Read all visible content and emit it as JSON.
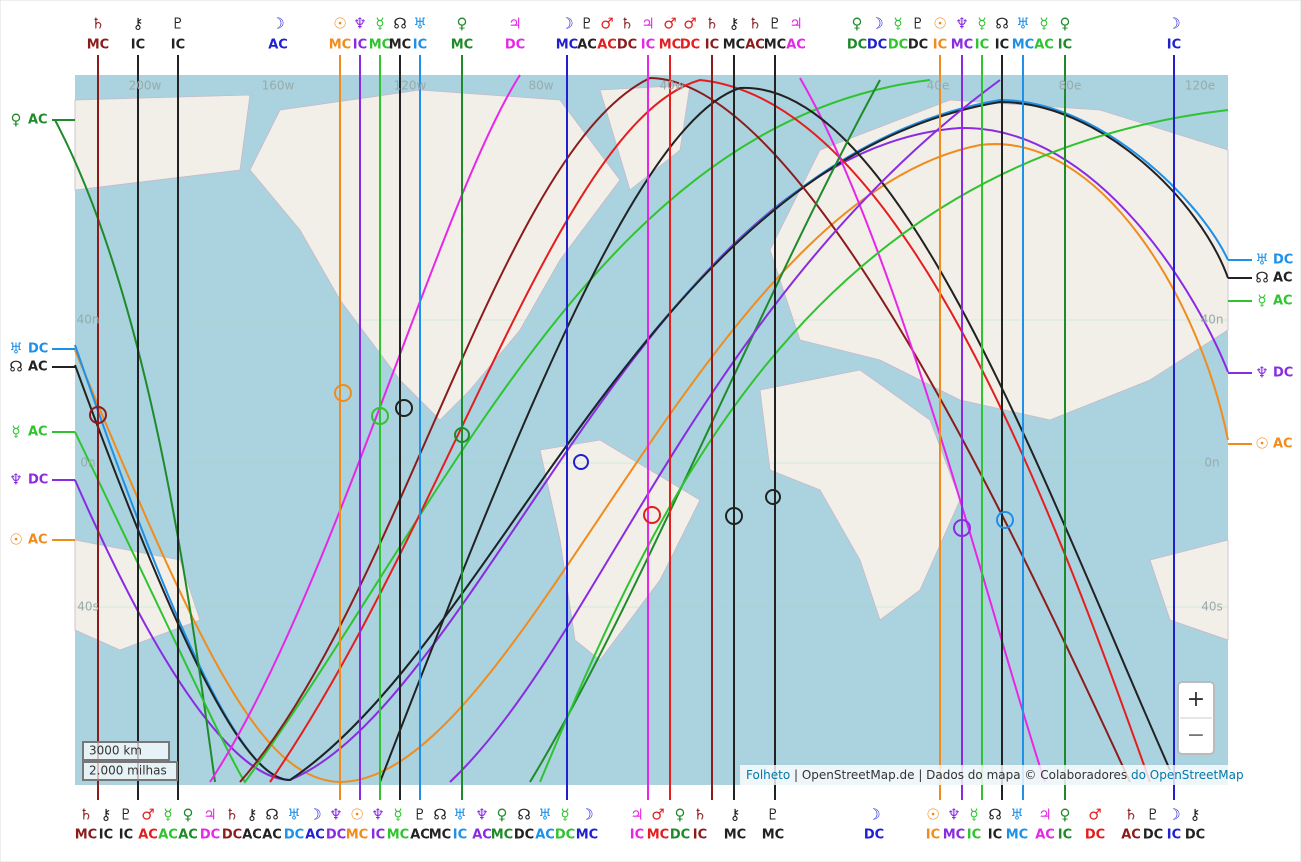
{
  "top_labels": [
    {
      "planet": "♄",
      "angle": "MC",
      "color": "#8b1c1c"
    },
    {
      "planet": "⚷",
      "angle": "IC",
      "color": "#222222"
    },
    {
      "planet": "♇",
      "angle": "IC",
      "color": "#222222"
    },
    {
      "planet": "☽",
      "angle": "AC",
      "color": "#2020d0"
    },
    {
      "planet": "☉",
      "angle": "MC",
      "color": "#f08c1e"
    },
    {
      "planet": "♆",
      "angle": "IC",
      "color": "#8a2be2"
    },
    {
      "planet": "☿",
      "angle": "MC",
      "color": "#2fc42f"
    },
    {
      "planet": "☊",
      "angle": "MC",
      "color": "#222222"
    },
    {
      "planet": "♅",
      "angle": "IC",
      "color": "#1e90e8"
    },
    {
      "planet": "♀",
      "angle": "MC",
      "color": "#1f8a2a"
    },
    {
      "planet": "♃",
      "angle": "DC",
      "color": "#e628e6"
    },
    {
      "planet": "☽",
      "angle": "MC",
      "color": "#2020d0"
    },
    {
      "planet": "♇",
      "angle": "AC",
      "color": "#222222"
    },
    {
      "planet": "♂",
      "angle": "AC",
      "color": "#e41e1e"
    },
    {
      "planet": "♄",
      "angle": "DC",
      "color": "#8b1c1c"
    },
    {
      "planet": "♃",
      "angle": "IC",
      "color": "#e628e6"
    },
    {
      "planet": "♂",
      "angle": "MC",
      "color": "#e41e1e"
    },
    {
      "planet": "♂",
      "angle": "DC",
      "color": "#e41e1e"
    },
    {
      "planet": "♄",
      "angle": "IC",
      "color": "#8b1c1c"
    },
    {
      "planet": "⚷",
      "angle": "MC",
      "color": "#222222"
    },
    {
      "planet": "♄",
      "angle": "AC",
      "color": "#8b1c1c"
    },
    {
      "planet": "♇",
      "angle": "MC",
      "color": "#222222"
    },
    {
      "planet": "♃",
      "angle": "AC",
      "color": "#e628e6"
    },
    {
      "planet": "♀",
      "angle": "DC",
      "color": "#1f8a2a"
    },
    {
      "planet": "☽",
      "angle": "DC",
      "color": "#2020d0"
    },
    {
      "planet": "☿",
      "angle": "DC",
      "color": "#2fc42f"
    },
    {
      "planet": "♇",
      "angle": "DC",
      "color": "#222222"
    },
    {
      "planet": "☉",
      "angle": "IC",
      "color": "#f08c1e"
    },
    {
      "planet": "♆",
      "angle": "MC",
      "color": "#8a2be2"
    },
    {
      "planet": "☿",
      "angle": "IC",
      "color": "#2fc42f"
    },
    {
      "planet": "☊",
      "angle": "IC",
      "color": "#222222"
    },
    {
      "planet": "♅",
      "angle": "MC",
      "color": "#1e90e8"
    },
    {
      "planet": "☿",
      "angle": "AC",
      "color": "#2fc42f"
    },
    {
      "planet": "♀",
      "angle": "IC",
      "color": "#1f8a2a"
    },
    {
      "planet": "☽",
      "angle": "IC",
      "color": "#2020d0"
    }
  ],
  "bottom_labels": [
    {
      "planet": "♄",
      "angle": "MC",
      "color": "#8b1c1c"
    },
    {
      "planet": "⚷",
      "angle": "IC",
      "color": "#222222"
    },
    {
      "planet": "♇",
      "angle": "IC",
      "color": "#222222"
    },
    {
      "planet": "♂",
      "angle": "AC",
      "color": "#e41e1e"
    },
    {
      "planet": "☿",
      "angle": "AC",
      "color": "#2fc42f"
    },
    {
      "planet": "♀",
      "angle": "AC",
      "color": "#1f8a2a"
    },
    {
      "planet": "♃",
      "angle": "DC",
      "color": "#e628e6"
    },
    {
      "planet": "♄",
      "angle": "DC",
      "color": "#8b1c1c"
    },
    {
      "planet": "⚷",
      "angle": "AC",
      "color": "#222222"
    },
    {
      "planet": "☊",
      "angle": "AC",
      "color": "#222222"
    },
    {
      "planet": "♅",
      "angle": "DC",
      "color": "#1e90e8"
    },
    {
      "planet": "☽",
      "angle": "AC",
      "color": "#2020d0"
    },
    {
      "planet": "♆",
      "angle": "DC",
      "color": "#8a2be2"
    },
    {
      "planet": "☉",
      "angle": "MC",
      "color": "#f08c1e"
    },
    {
      "planet": "♆",
      "angle": "IC",
      "color": "#8a2be2"
    },
    {
      "planet": "☿",
      "angle": "MC",
      "color": "#2fc42f"
    },
    {
      "planet": "♇",
      "angle": "AC",
      "color": "#222222"
    },
    {
      "planet": "☊",
      "angle": "MC",
      "color": "#222222"
    },
    {
      "planet": "♅",
      "angle": "IC",
      "color": "#1e90e8"
    },
    {
      "planet": "♆",
      "angle": "AC",
      "color": "#8a2be2"
    },
    {
      "planet": "♀",
      "angle": "MC",
      "color": "#1f8a2a"
    },
    {
      "planet": "☊",
      "angle": "DC",
      "color": "#222222"
    },
    {
      "planet": "♅",
      "angle": "AC",
      "color": "#1e90e8"
    },
    {
      "planet": "☿",
      "angle": "DC",
      "color": "#2fc42f"
    },
    {
      "planet": "☽",
      "angle": "MC",
      "color": "#2020d0"
    },
    {
      "planet": "♃",
      "angle": "IC",
      "color": "#e628e6"
    },
    {
      "planet": "♂",
      "angle": "MC",
      "color": "#e41e1e"
    },
    {
      "planet": "♀",
      "angle": "DC",
      "color": "#1f8a2a"
    },
    {
      "planet": "♄",
      "angle": "IC",
      "color": "#8b1c1c"
    },
    {
      "planet": "⚷",
      "angle": "MC",
      "color": "#222222"
    },
    {
      "planet": "♇",
      "angle": "MC",
      "color": "#222222"
    },
    {
      "planet": "☽",
      "angle": "DC",
      "color": "#2020d0"
    },
    {
      "planet": "☉",
      "angle": "IC",
      "color": "#f08c1e"
    },
    {
      "planet": "♆",
      "angle": "MC",
      "color": "#8a2be2"
    },
    {
      "planet": "☿",
      "angle": "IC",
      "color": "#2fc42f"
    },
    {
      "planet": "☊",
      "angle": "IC",
      "color": "#222222"
    },
    {
      "planet": "♅",
      "angle": "MC",
      "color": "#1e90e8"
    },
    {
      "planet": "♃",
      "angle": "AC",
      "color": "#e628e6"
    },
    {
      "planet": "♀",
      "angle": "IC",
      "color": "#1f8a2a"
    },
    {
      "planet": "♂",
      "angle": "DC",
      "color": "#e41e1e"
    },
    {
      "planet": "♄",
      "angle": "AC",
      "color": "#8b1c1c"
    },
    {
      "planet": "♇",
      "angle": "DC",
      "color": "#222222"
    },
    {
      "planet": "☽",
      "angle": "IC",
      "color": "#2020d0"
    },
    {
      "planet": "⚷",
      "angle": "DC",
      "color": "#222222"
    }
  ],
  "left_labels": [
    {
      "planet": "♀",
      "angle": "AC",
      "color": "#1f8a2a"
    },
    {
      "planet": "♅",
      "angle": "DC",
      "color": "#1e90e8"
    },
    {
      "planet": "☊",
      "angle": "AC",
      "color": "#222222"
    },
    {
      "planet": "☿",
      "angle": "AC",
      "color": "#2fc42f"
    },
    {
      "planet": "♆",
      "angle": "DC",
      "color": "#8a2be2"
    },
    {
      "planet": "☉",
      "angle": "AC",
      "color": "#f08c1e"
    }
  ],
  "right_labels": [
    {
      "planet": "♅",
      "angle": "DC",
      "color": "#1e90e8"
    },
    {
      "planet": "☊",
      "angle": "AC",
      "color": "#222222"
    },
    {
      "planet": "☿",
      "angle": "AC",
      "color": "#2fc42f"
    },
    {
      "planet": "♆",
      "angle": "DC",
      "color": "#8a2be2"
    },
    {
      "planet": "☉",
      "angle": "AC",
      "color": "#f08c1e"
    }
  ],
  "graticule": {
    "longitudes": [
      "200w",
      "160w",
      "120w",
      "80w",
      "40w",
      "40e",
      "80e",
      "120e"
    ],
    "latitudes": [
      "40n",
      "0n",
      "40s"
    ]
  },
  "scale": {
    "km": "3000 km",
    "miles": "2.000 milhas"
  },
  "zoom": {
    "in": "+",
    "out": "−"
  },
  "attribution": {
    "link1": "Folheto",
    "text": " | OpenStreetMap.de | Dados do mapa © Colaboradores ",
    "link2": "do",
    "link3": "OpenStreetMap"
  }
}
